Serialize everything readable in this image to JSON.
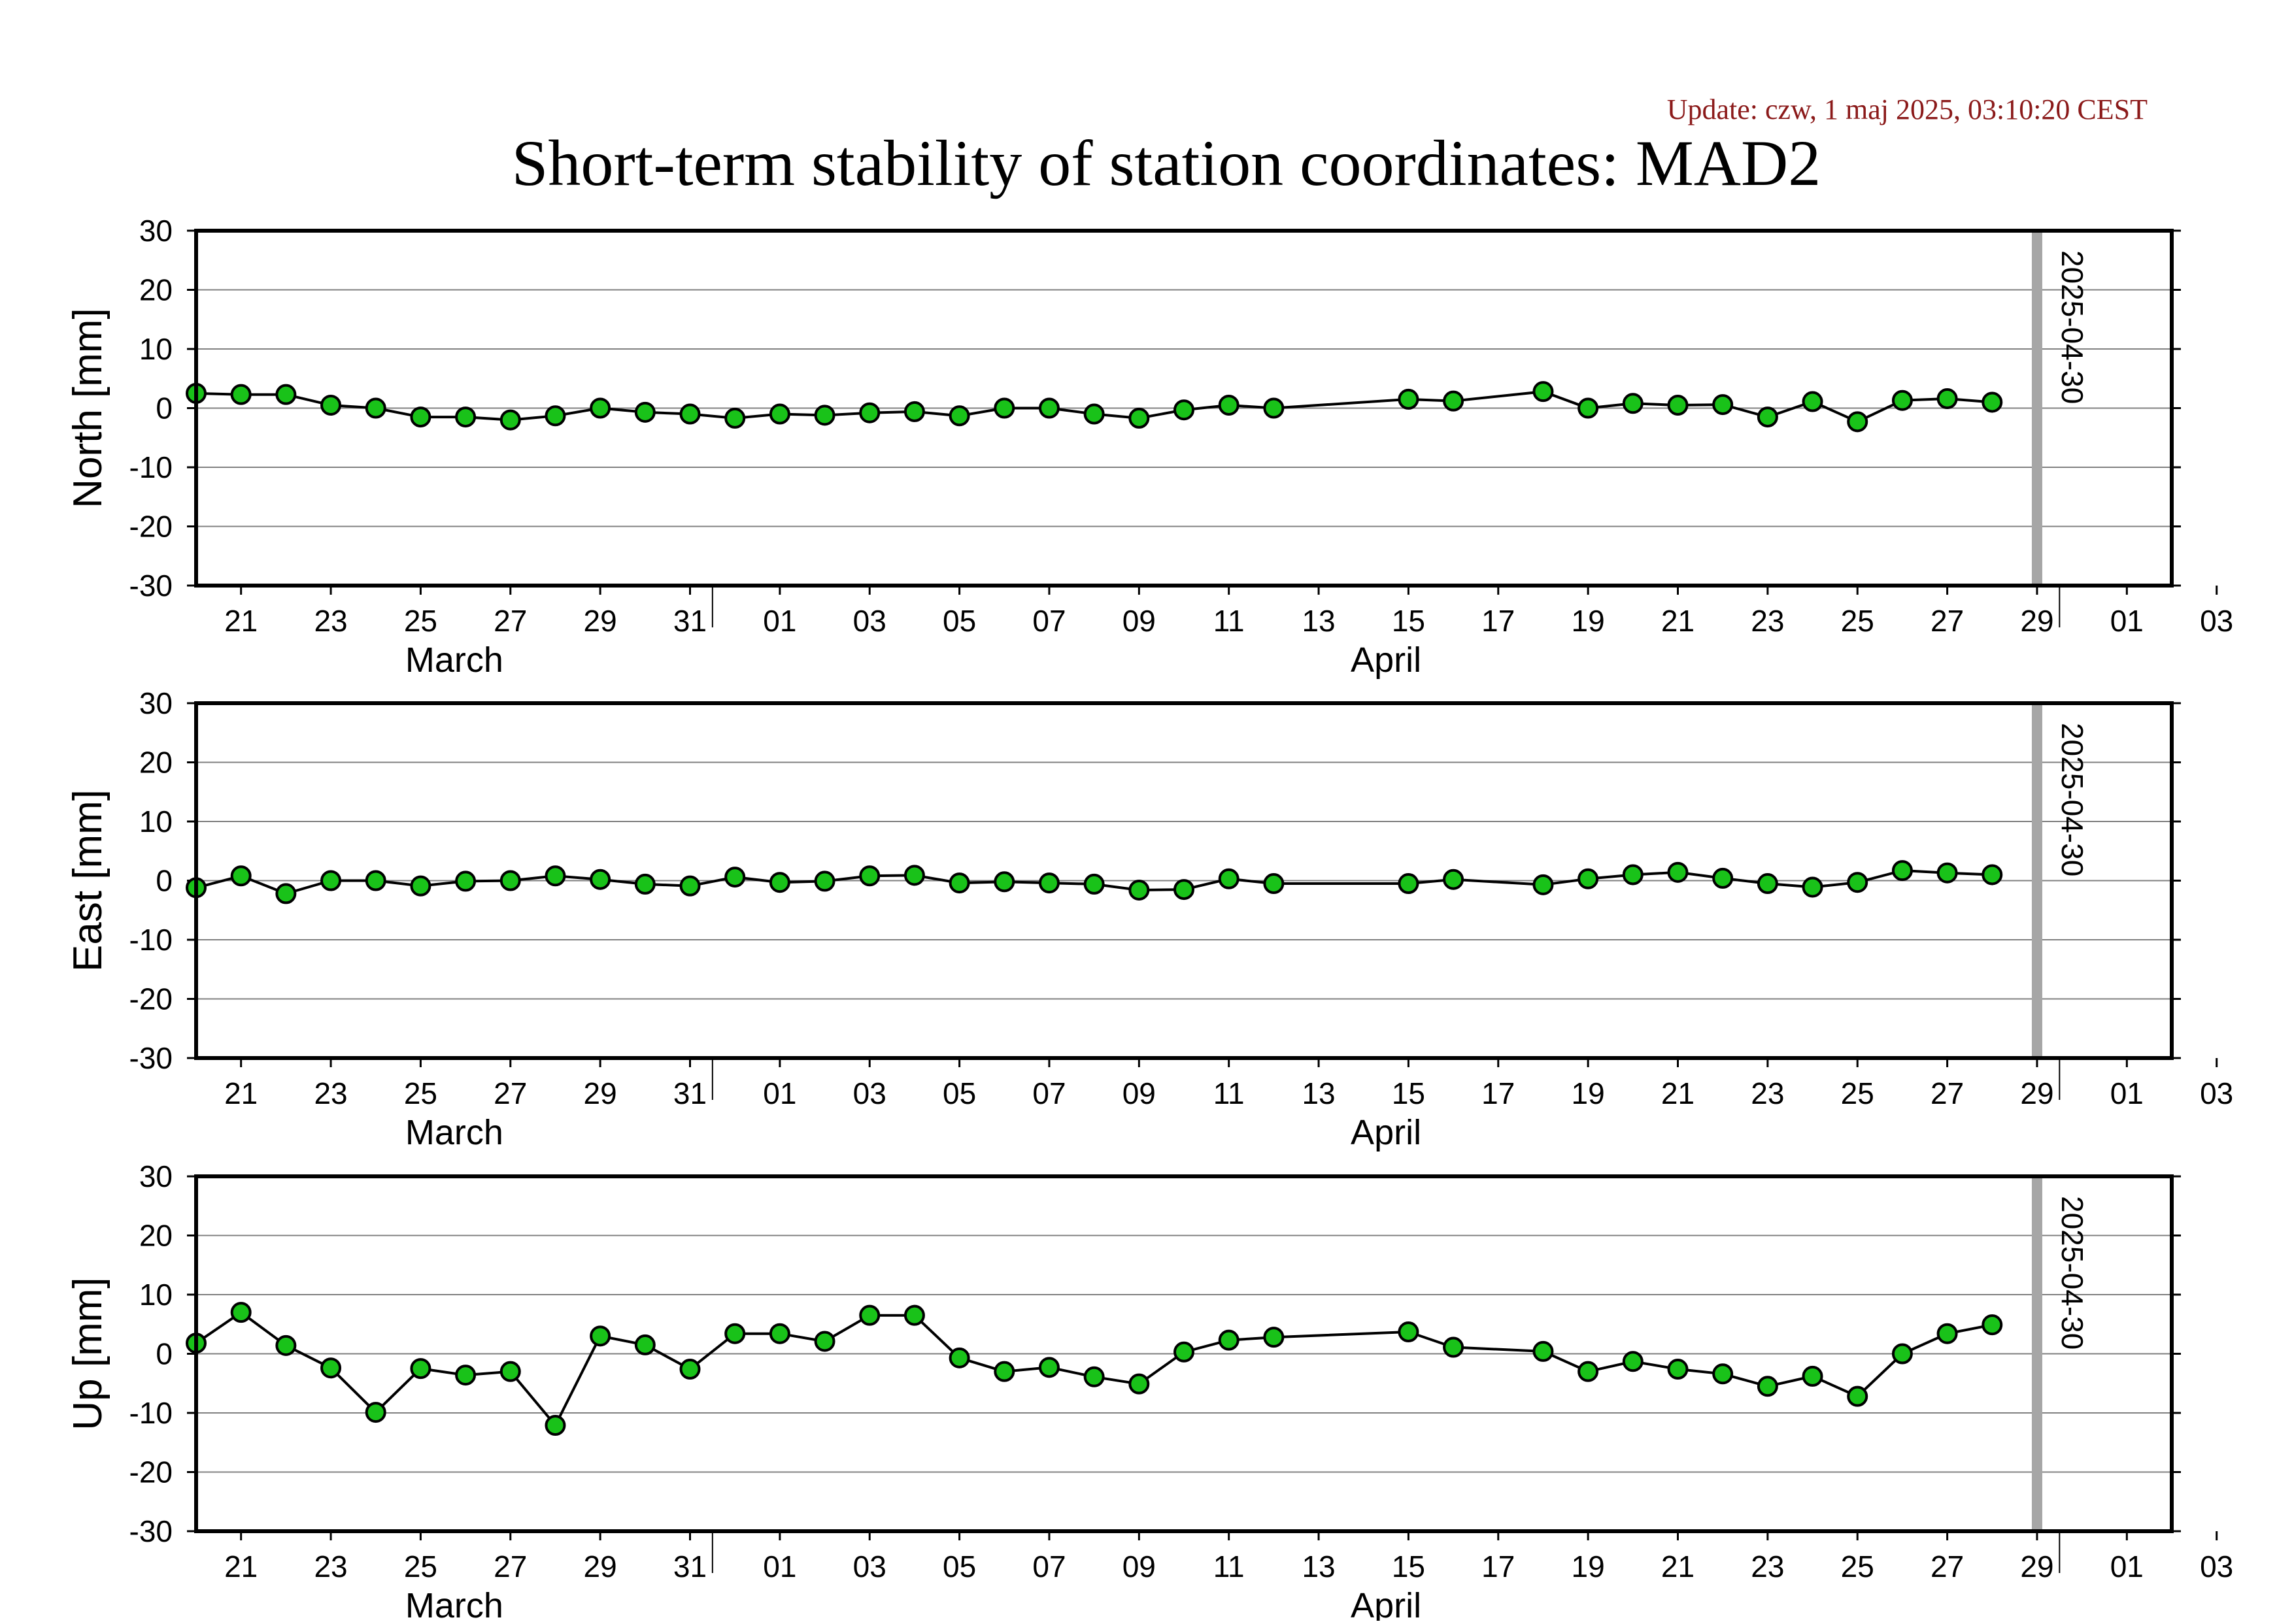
{
  "update": "Update: czw, 1 maj 2025, 03:10:20 CEST",
  "title": "Short-term stability of station coordinates: MAD2",
  "colors": {
    "marker_fill": "#19c219",
    "marker_stroke": "#000000",
    "line": "#000000",
    "grid": "#808080",
    "date_line": "#a6a6a6",
    "update_text": "#8b1a1a"
  },
  "chart_data": [
    {
      "type": "line",
      "ylabel": "North [mm]",
      "ylim": [
        -30,
        30
      ],
      "yticks": [
        "30",
        "20",
        "10",
        "0",
        "-10",
        "-20",
        "-30"
      ],
      "grid": true,
      "marker": "circle",
      "x_range": [
        "2025-03-20",
        "2025-05-03"
      ],
      "x_ticks": [
        "21",
        "23",
        "25",
        "27",
        "29",
        "31",
        "01",
        "03",
        "05",
        "07",
        "09",
        "11",
        "13",
        "15",
        "17",
        "19",
        "21",
        "23",
        "25",
        "27",
        "29",
        "01",
        "03"
      ],
      "x_month_labels": [
        "March",
        "April"
      ],
      "marked_date": "2025-04-30",
      "x": [
        "2025-03-20",
        "2025-03-21",
        "2025-03-22",
        "2025-03-23",
        "2025-03-24",
        "2025-03-25",
        "2025-03-26",
        "2025-03-27",
        "2025-03-28",
        "2025-03-29",
        "2025-03-30",
        "2025-03-31",
        "2025-04-01",
        "2025-04-02",
        "2025-04-03",
        "2025-04-04",
        "2025-04-05",
        "2025-04-06",
        "2025-04-07",
        "2025-04-08",
        "2025-04-09",
        "2025-04-10",
        "2025-04-11",
        "2025-04-12",
        "2025-04-13",
        "2025-04-16",
        "2025-04-17",
        "2025-04-19",
        "2025-04-20",
        "2025-04-21",
        "2025-04-22",
        "2025-04-23",
        "2025-04-24",
        "2025-04-25",
        "2025-04-26",
        "2025-04-27",
        "2025-04-28",
        "2025-04-29"
      ],
      "y": [
        2.5,
        2.3,
        2.3,
        0.5,
        0.0,
        -1.5,
        -1.5,
        -2.0,
        -1.3,
        0.0,
        -0.7,
        -1.0,
        -1.7,
        -1.0,
        -1.2,
        -0.8,
        -0.6,
        -1.3,
        0.0,
        0.0,
        -1.0,
        -1.7,
        -0.3,
        0.5,
        0.0,
        1.5,
        1.2,
        2.8,
        0.0,
        0.8,
        0.5,
        0.6,
        -1.5,
        1.1,
        -2.3,
        1.3,
        1.6,
        1.0
      ]
    },
    {
      "type": "line",
      "ylabel": "East [mm]",
      "ylim": [
        -30,
        30
      ],
      "yticks": [
        "30",
        "20",
        "10",
        "0",
        "-10",
        "-20",
        "-30"
      ],
      "grid": true,
      "marker": "circle",
      "x_range": [
        "2025-03-20",
        "2025-05-03"
      ],
      "x_ticks": [
        "21",
        "23",
        "25",
        "27",
        "29",
        "31",
        "01",
        "03",
        "05",
        "07",
        "09",
        "11",
        "13",
        "15",
        "17",
        "19",
        "21",
        "23",
        "25",
        "27",
        "29",
        "01",
        "03"
      ],
      "x_month_labels": [
        "March",
        "April"
      ],
      "marked_date": "2025-04-30",
      "x": [
        "2025-03-20",
        "2025-03-21",
        "2025-03-22",
        "2025-03-23",
        "2025-03-24",
        "2025-03-25",
        "2025-03-26",
        "2025-03-27",
        "2025-03-28",
        "2025-03-29",
        "2025-03-30",
        "2025-03-31",
        "2025-04-01",
        "2025-04-02",
        "2025-04-03",
        "2025-04-04",
        "2025-04-05",
        "2025-04-06",
        "2025-04-07",
        "2025-04-08",
        "2025-04-09",
        "2025-04-10",
        "2025-04-11",
        "2025-04-12",
        "2025-04-13",
        "2025-04-16",
        "2025-04-17",
        "2025-04-19",
        "2025-04-20",
        "2025-04-21",
        "2025-04-22",
        "2025-04-23",
        "2025-04-24",
        "2025-04-25",
        "2025-04-26",
        "2025-04-27",
        "2025-04-28",
        "2025-04-29"
      ],
      "y": [
        -1.2,
        0.8,
        -2.2,
        0.0,
        0.0,
        -0.9,
        -0.1,
        0.0,
        0.8,
        0.2,
        -0.6,
        -0.9,
        0.6,
        -0.3,
        -0.1,
        0.8,
        0.9,
        -0.4,
        -0.2,
        -0.4,
        -0.6,
        -1.6,
        -1.5,
        0.3,
        -0.5,
        -0.5,
        0.2,
        -0.7,
        0.3,
        1.0,
        1.4,
        0.4,
        -0.5,
        -1.1,
        -0.3,
        1.7,
        1.3,
        1.0
      ]
    },
    {
      "type": "line",
      "ylabel": "Up [mm]",
      "ylim": [
        -30,
        30
      ],
      "yticks": [
        "30",
        "20",
        "10",
        "0",
        "-10",
        "-20",
        "-30"
      ],
      "grid": true,
      "marker": "circle",
      "x_range": [
        "2025-03-20",
        "2025-05-03"
      ],
      "x_ticks": [
        "21",
        "23",
        "25",
        "27",
        "29",
        "31",
        "01",
        "03",
        "05",
        "07",
        "09",
        "11",
        "13",
        "15",
        "17",
        "19",
        "21",
        "23",
        "25",
        "27",
        "29",
        "01",
        "03"
      ],
      "x_month_labels": [
        "March",
        "April"
      ],
      "marked_date": "2025-04-30",
      "x": [
        "2025-03-20",
        "2025-03-21",
        "2025-03-22",
        "2025-03-23",
        "2025-03-24",
        "2025-03-25",
        "2025-03-26",
        "2025-03-27",
        "2025-03-28",
        "2025-03-29",
        "2025-03-30",
        "2025-03-31",
        "2025-04-01",
        "2025-04-02",
        "2025-04-03",
        "2025-04-04",
        "2025-04-05",
        "2025-04-06",
        "2025-04-07",
        "2025-04-08",
        "2025-04-09",
        "2025-04-10",
        "2025-04-11",
        "2025-04-12",
        "2025-04-13",
        "2025-04-16",
        "2025-04-17",
        "2025-04-19",
        "2025-04-20",
        "2025-04-21",
        "2025-04-22",
        "2025-04-23",
        "2025-04-24",
        "2025-04-25",
        "2025-04-26",
        "2025-04-27",
        "2025-04-28",
        "2025-04-29"
      ],
      "y": [
        1.8,
        7.0,
        1.4,
        -2.4,
        -9.9,
        -2.5,
        -3.6,
        -3.0,
        -12.1,
        3.0,
        1.5,
        -2.6,
        3.4,
        3.4,
        2.1,
        6.5,
        6.5,
        -0.7,
        -3.0,
        -2.3,
        -3.9,
        -5.1,
        0.3,
        2.3,
        2.8,
        3.7,
        1.1,
        0.4,
        -3.0,
        -1.3,
        -2.6,
        -3.4,
        -5.5,
        -3.8,
        -7.2,
        0.0,
        3.4,
        4.9
      ]
    }
  ]
}
